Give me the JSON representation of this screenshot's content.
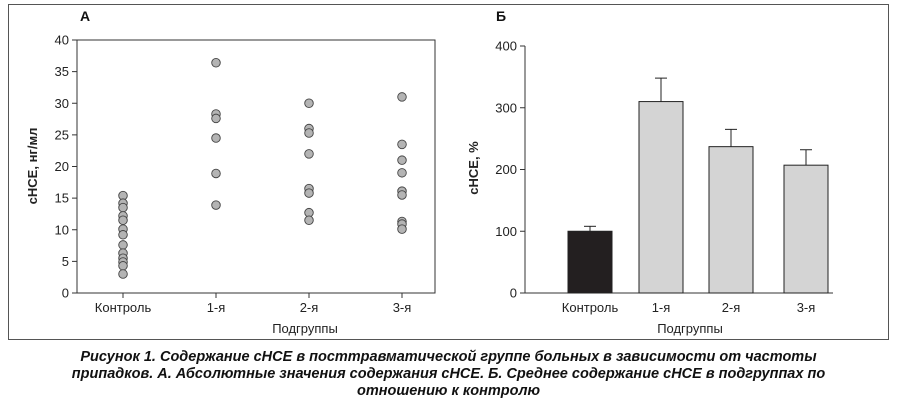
{
  "chart_data": [
    {
      "type": "scatter",
      "panel_label": "А",
      "categories": [
        "Контроль",
        "1-я",
        "2-я",
        "3-я"
      ],
      "series": [
        {
          "values": [
            [
              15.4,
              14.2,
              13.5,
              12.2,
              11.5,
              10.1,
              9.2,
              7.6,
              6.3,
              5.5,
              4.9,
              4.3,
              3.0
            ],
            [
              36.4,
              28.3,
              27.6,
              24.5,
              18.9,
              13.9
            ],
            [
              30.0,
              26.0,
              25.3,
              22.0,
              16.5,
              15.8,
              12.7,
              11.5
            ],
            [
              31.0,
              23.5,
              21.0,
              19.0,
              16.1,
              15.5,
              11.3,
              10.9,
              10.1
            ]
          ]
        }
      ],
      "xlabel": "Подгруппы",
      "ylabel": "сНСЕ, нг/мл",
      "ylim": [
        0,
        40
      ],
      "yticks": [
        "0",
        "5",
        "10",
        "15",
        "20",
        "25",
        "30",
        "35",
        "40"
      ],
      "grid": false
    },
    {
      "type": "bar",
      "panel_label": "Б",
      "categories": [
        "Контроль",
        "1-я",
        "2-я",
        "3-я"
      ],
      "values": [
        100,
        310,
        237,
        207
      ],
      "errors": [
        8,
        38,
        28,
        25
      ],
      "bar_colors": [
        "#231f20",
        "#d4d4d4",
        "#d4d4d4",
        "#d4d4d4"
      ],
      "xlabel": "Подгруппы",
      "ylabel": "сНСЕ, %",
      "ylim": [
        0,
        400
      ],
      "yticks": [
        "0",
        "100",
        "200",
        "300",
        "400"
      ],
      "grid": false
    }
  ],
  "caption": {
    "line1": "Рисунок 1. Содержание сНСЕ в посттравматической группе больных в зависимости от частоты",
    "line2": "припадков. А. Абсолютные значения содержания сНСЕ. Б. Среднее содержание сНСЕ в подгруппах по",
    "line3": "отношению к контролю"
  },
  "colors": {
    "marker_fill": "#b4b4b4",
    "marker_stroke": "#444444",
    "axis": "#333333"
  }
}
